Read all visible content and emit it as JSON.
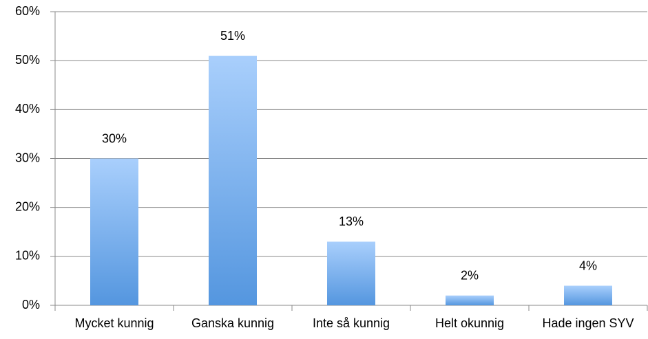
{
  "chart_data": {
    "type": "bar",
    "categories": [
      "Mycket kunnig",
      "Ganska kunnig",
      "Inte så kunnig",
      "Helt okunnig",
      "Hade ingen SYV"
    ],
    "values": [
      30,
      51,
      13,
      2,
      4
    ],
    "value_labels": [
      "30%",
      "51%",
      "13%",
      "2%",
      "4%"
    ],
    "color": "#5b9be3",
    "ylim": [
      0,
      60
    ],
    "yticks": [
      {
        "value": 0,
        "label": "0%"
      },
      {
        "value": 10,
        "label": "10%"
      },
      {
        "value": 20,
        "label": "20%"
      },
      {
        "value": 30,
        "label": "30%"
      },
      {
        "value": 40,
        "label": "40%"
      },
      {
        "value": 50,
        "label": "50%"
      },
      {
        "value": 60,
        "label": "60%"
      }
    ],
    "grid": true
  }
}
